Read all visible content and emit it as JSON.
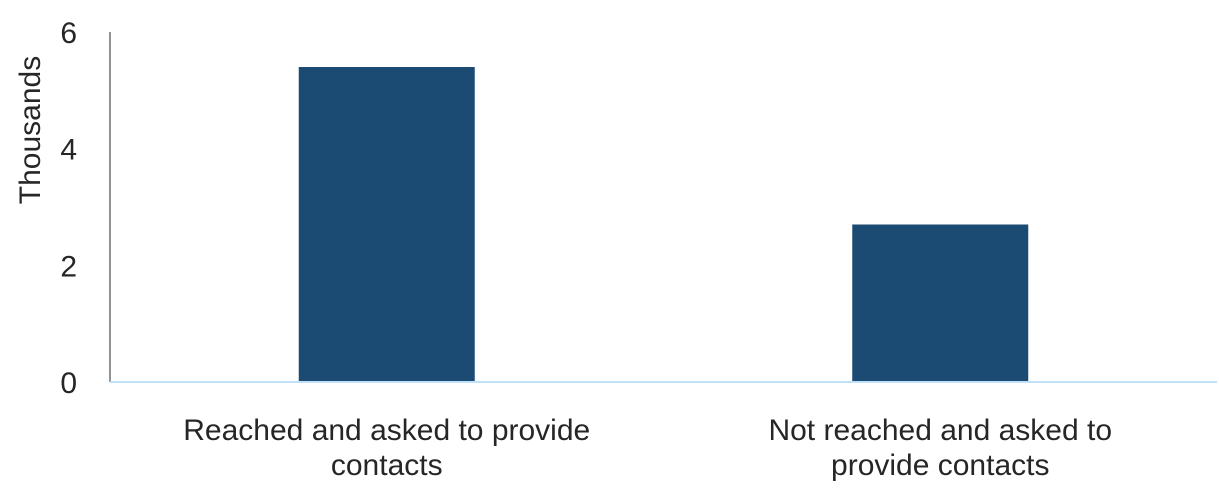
{
  "chart_data": {
    "type": "bar",
    "title": "",
    "xlabel": "",
    "ylabel": "Thousands",
    "categories": [
      [
        "Reached and asked to provide",
        "contacts"
      ],
      [
        "Not reached and asked to",
        "provide contacts"
      ]
    ],
    "values": [
      5.4,
      2.7
    ],
    "ylim": [
      0,
      6
    ],
    "yticks": [
      "0",
      "2",
      "4",
      "6"
    ],
    "grid": false,
    "legend": "none",
    "colors": {
      "bar": "#1b4a72",
      "left_axis": "#262626",
      "baseline": "#bfe0f5"
    }
  }
}
